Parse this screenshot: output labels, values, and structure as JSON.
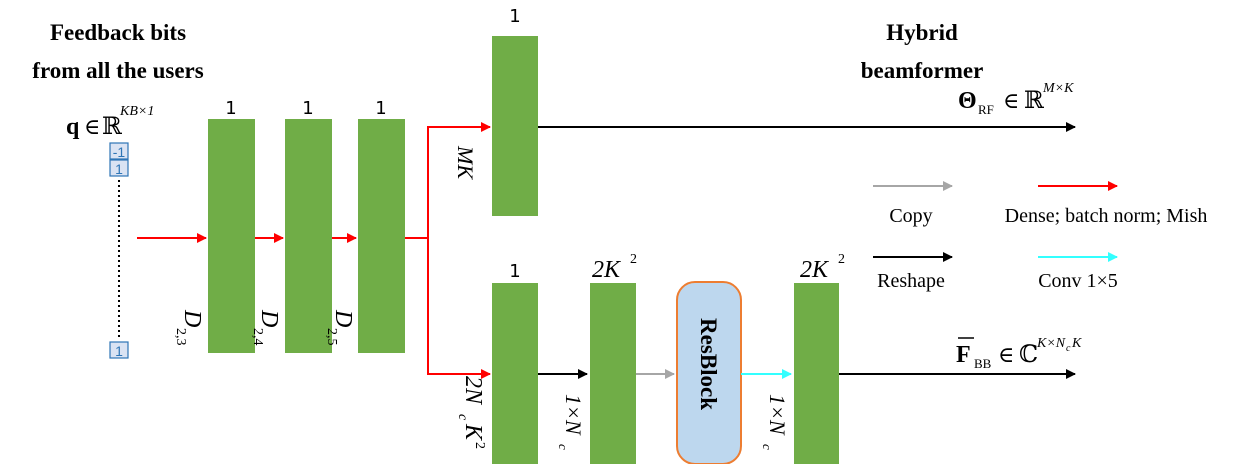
{
  "title_left_line1": "Feedback bits",
  "title_left_line2": "from all the users",
  "title_right_line1": "Hybrid",
  "title_right_line2": "beamformer",
  "q": {
    "sym": "q",
    "rel": "∈",
    "set": "ℝ",
    "sup": "KB×1"
  },
  "bits": {
    "top1": "-1",
    "top2": "1",
    "bottom": "1"
  },
  "layer_widths": {
    "d1": "1",
    "d2": "1",
    "d3": "1",
    "top": "1",
    "b1": "1"
  },
  "dims": {
    "d1_main": "D",
    "d1_sub": "2,3",
    "d2_main": "D",
    "d2_sub": "2,4",
    "d3_main": "D",
    "d3_sub": "2,5"
  },
  "mk_label": "MK",
  "theta": {
    "sym": "Θ",
    "sub": "RF",
    "rel": "∈",
    "set": "ℝ",
    "sup": "M×K"
  },
  "fbb": {
    "sym": "F",
    "sub": "BB",
    "rel": "∈",
    "set": "ℂ",
    "sup_main": "K×N",
    "sup_sub": "c",
    "sup_tail": "K"
  },
  "top_labels": {
    "b2": "2K",
    "b2_sup": "2",
    "b3": "2K",
    "b3_sup": "2"
  },
  "vertical_labels": {
    "b1_a": "2N",
    "b1_sub": "c",
    "b1_b": "K",
    "b1_sup": "2",
    "b2_a": "1×N",
    "b2_sub": "c",
    "b3_a": "1×N",
    "b3_sub": "c"
  },
  "resblock": "ResBlock",
  "legend": {
    "copy": "Copy",
    "dense": "Dense; batch norm; Mish",
    "reshape": "Reshape",
    "conv": "Conv 1×5"
  },
  "colors": {
    "green": "#70ad47",
    "red": "#ff0000",
    "black": "#000000",
    "gray": "#a6a6a6",
    "cyan": "#33ffff",
    "resblock_fill": "#bdd7ee",
    "resblock_stroke": "#ed7d31",
    "bit_color": "#2e75b6"
  }
}
